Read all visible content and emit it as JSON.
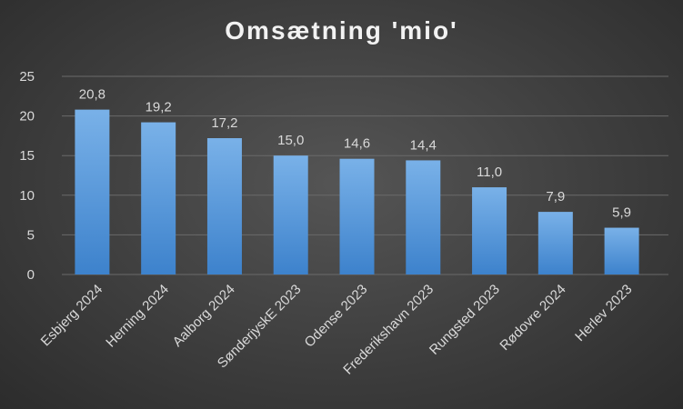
{
  "chart_data": {
    "type": "bar",
    "title": "Omsætning 'mio'",
    "categories": [
      "Esbjerg 2024",
      "Herning 2024",
      "Aalborg 2024",
      "SønderjyskE 2023",
      "Odense 2023",
      "Frederikshavn 2023",
      "Rungsted 2023",
      "Rødovre 2024",
      "Herlev 2023"
    ],
    "values": [
      20.8,
      19.2,
      17.2,
      15.0,
      14.6,
      14.4,
      11.0,
      7.9,
      5.9
    ],
    "data_labels": [
      "20,8",
      "19,2",
      "17,2",
      "15,0",
      "14,6",
      "14,4",
      "11,0",
      "7,9",
      "5,9"
    ],
    "yticks": [
      0,
      5,
      10,
      15,
      20,
      25
    ],
    "ytick_labels": [
      "0",
      "5",
      "10",
      "15",
      "20",
      "25"
    ],
    "ylim": [
      0,
      25
    ],
    "xlabel": "",
    "ylabel": "",
    "grid": true,
    "legend": "none",
    "colors": {
      "bar_top": "#79b1e8",
      "bar_bottom": "#3d82cc",
      "grid": "#6a6a6a",
      "background": "#404040",
      "text": "#d9d9d9",
      "title": "#f2f2f2"
    }
  }
}
